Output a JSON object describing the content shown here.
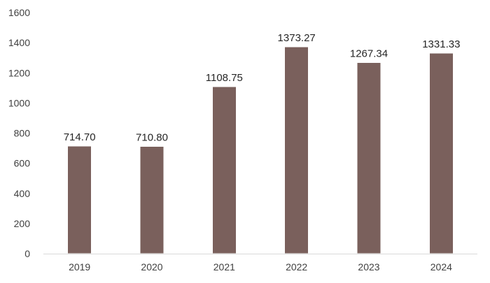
{
  "chart_data": {
    "type": "bar",
    "title": "",
    "xlabel": "",
    "ylabel": "",
    "categories": [
      "2019",
      "2020",
      "2021",
      "2022",
      "2023",
      "2024"
    ],
    "values": [
      714.7,
      710.8,
      1108.75,
      1373.27,
      1267.34,
      1331.33
    ],
    "value_labels": [
      "714.70",
      "710.80",
      "1108.75",
      "1373.27",
      "1267.34",
      "1331.33"
    ],
    "ylim": [
      0,
      1600
    ],
    "yticks": [
      0,
      200,
      400,
      600,
      800,
      1000,
      1200,
      1400,
      1600
    ],
    "grid": false,
    "legend": "none",
    "bar_color": "#7a605c",
    "bar_edge_color": "#ffffff"
  }
}
